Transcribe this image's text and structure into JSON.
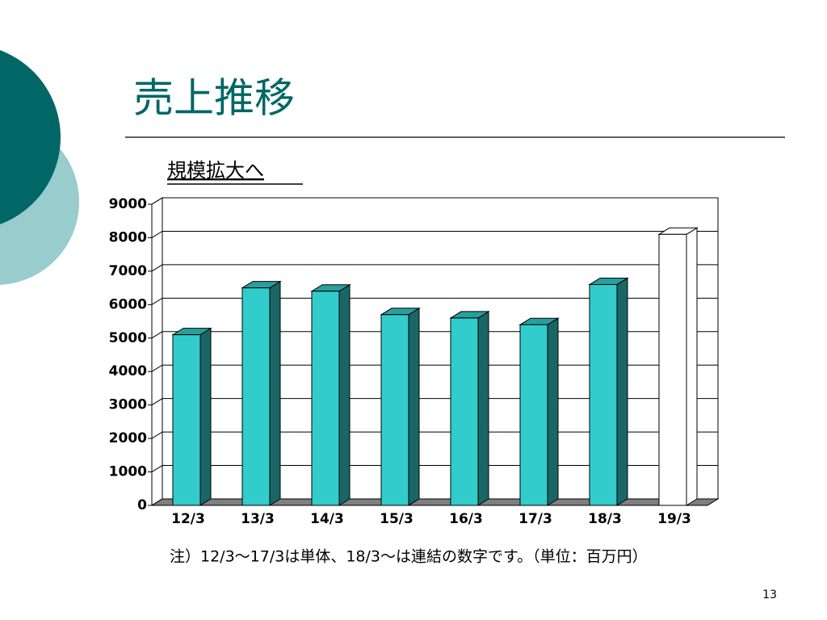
{
  "slide": {
    "title": "売上推移",
    "page_number": "13"
  },
  "chart_data": {
    "type": "bar3d",
    "subtitle": "規模拡大へ",
    "note": "注）12/3～17/3は単体、18/3～は連結の数字です。（単位：百万円）",
    "categories": [
      "12/3",
      "13/3",
      "14/3",
      "15/3",
      "16/3",
      "17/3",
      "18/3",
      "19/3"
    ],
    "values": [
      5100,
      6500,
      6400,
      5700,
      5600,
      5400,
      6600,
      8100
    ],
    "colors": [
      "#33cccc",
      "#33cccc",
      "#33cccc",
      "#33cccc",
      "#33cccc",
      "#33cccc",
      "#33cccc",
      "#ffffff"
    ],
    "ylim": [
      0,
      9000
    ],
    "yticks": [
      0,
      1000,
      2000,
      3000,
      4000,
      5000,
      6000,
      7000,
      8000,
      9000
    ],
    "grid": true
  }
}
